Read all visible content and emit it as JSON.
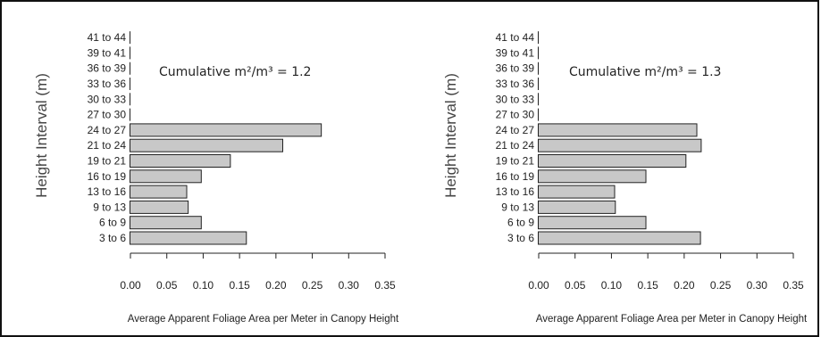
{
  "chart_data": [
    {
      "type": "bar",
      "orientation": "horizontal",
      "ylabel": "Height Interval (m)",
      "xlabel": "Average Apparent Foliage Area per Meter in Canopy Height",
      "annotation": "Cumulative m²/m³ = 1.2",
      "categories": [
        "3 to 6",
        "6 to 9",
        "9 to 13",
        "13 to 16",
        "16 to 19",
        "19 to 21",
        "21 to 24",
        "24 to 27",
        "27 to 30",
        "30 to 33",
        "33 to 36",
        "36 to 39",
        "39 to 41",
        "41 to 44"
      ],
      "values": [
        0.16,
        0.098,
        0.08,
        0.078,
        0.098,
        0.138,
        0.21,
        0.263,
        0,
        0,
        0,
        0,
        0,
        0
      ],
      "xticks": [
        "0.00",
        "0.05",
        "0.10",
        "0.15",
        "0.20",
        "0.25",
        "0.30",
        "0.35"
      ],
      "xlim": [
        0,
        0.35
      ],
      "bar_color": "#c8c8c8",
      "grid": false
    },
    {
      "type": "bar",
      "orientation": "horizontal",
      "ylabel": "Height Interval (m)",
      "xlabel": "Average Apparent Foliage Area per Meter in Canopy Height",
      "annotation": "Cumulative m²/m³ = 1.3",
      "categories": [
        "3 to 6",
        "6 to 9",
        "9 to 13",
        "13 to 16",
        "16 to 19",
        "19 to 21",
        "21 to 24",
        "24 to 27",
        "27 to 30",
        "30 to 33",
        "33 to 36",
        "36 to 39",
        "39 to 41",
        "41 to 44"
      ],
      "values": [
        0.223,
        0.148,
        0.106,
        0.105,
        0.148,
        0.203,
        0.224,
        0.218,
        0,
        0,
        0,
        0,
        0,
        0
      ],
      "xticks": [
        "0.00",
        "0.05",
        "0.10",
        "0.15",
        "0.20",
        "0.25",
        "0.30",
        "0.35"
      ],
      "xlim": [
        0,
        0.35
      ],
      "bar_color": "#c8c8c8",
      "grid": false
    }
  ]
}
